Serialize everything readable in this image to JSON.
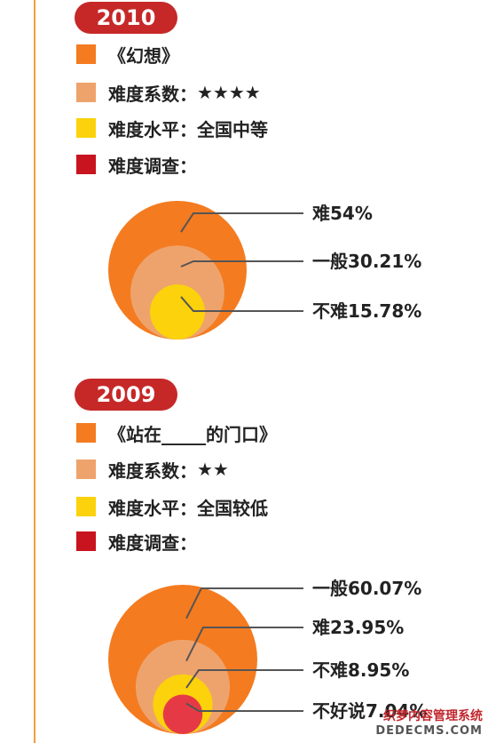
{
  "colors": {
    "accent": "#c62828",
    "timeline": "#f39c3c",
    "orange": "#f47b20",
    "light_orange": "#eea36c",
    "yellow": "#fbd20b",
    "red": "#c8141e",
    "pink_red": "#e63946"
  },
  "sections": [
    {
      "year": "2010",
      "legend": [
        {
          "color_key": "orange",
          "label": "《幻想》",
          "value": ""
        },
        {
          "color_key": "light_orange",
          "label": "难度系数：",
          "value": "★★★★"
        },
        {
          "color_key": "yellow",
          "label": "难度水平：",
          "value": "全国中等"
        },
        {
          "color_key": "red",
          "label": "难度调查：",
          "value": ""
        }
      ]
    },
    {
      "year": "2009",
      "legend": [
        {
          "color_key": "orange",
          "label": "《站在_____的门口》",
          "value": ""
        },
        {
          "color_key": "light_orange",
          "label": "难度系数：",
          "value": "★★"
        },
        {
          "color_key": "yellow",
          "label": "难度水平：",
          "value": "全国较低"
        },
        {
          "color_key": "red",
          "label": "难度调查：",
          "value": ""
        }
      ]
    }
  ],
  "chart_data": [
    {
      "type": "pie",
      "title": "难度调查",
      "categories": [
        "难",
        "一般",
        "不难"
      ],
      "values": [
        54,
        30.21,
        15.78
      ],
      "value_labels": [
        "难54%",
        "一般30.21%",
        "不难15.78%"
      ],
      "colors": [
        "#f47b20",
        "#eea36c",
        "#fbd20b"
      ]
    },
    {
      "type": "pie",
      "title": "难度调查",
      "categories": [
        "一般",
        "难",
        "不难",
        "不好说"
      ],
      "values": [
        60.07,
        23.95,
        8.95,
        7.04
      ],
      "value_labels": [
        "一般60.07%",
        "难23.95%",
        "不难8.95%",
        "不好说7.04%"
      ],
      "colors": [
        "#f47b20",
        "#eea36c",
        "#fbd20b",
        "#e63946"
      ]
    }
  ],
  "watermark": {
    "line1": "织梦内容管理系统",
    "line2": "DEDECMS.COM"
  }
}
